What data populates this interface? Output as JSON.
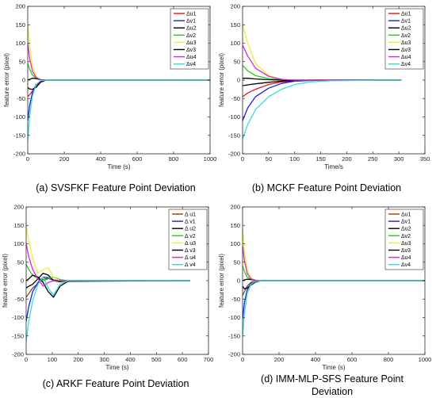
{
  "figure": {
    "captions": [
      "(a) SVSFKF Feature Point Deviation",
      "(b) MCKF Feature Point Deviation",
      "(c) ARKF Feature Point Deviation",
      [
        "(d) IMM-MLP-SFS Feature Point",
        "Deviation"
      ]
    ]
  },
  "chart_data": [
    {
      "type": "line",
      "title": "",
      "xlabel": "Time (s)",
      "ylabel": "feature error (pixel)",
      "xlim": [
        0,
        1000
      ],
      "ylim": [
        -200,
        200
      ],
      "xticks": [
        0,
        200,
        400,
        600,
        800,
        1000
      ],
      "yticks": [
        -200,
        -150,
        -100,
        -50,
        0,
        50,
        100,
        150,
        200
      ],
      "grid": false,
      "legend_position": "top-right",
      "series": [
        {
          "name": "Δu1",
          "color": "#e8141a",
          "x": [
            0,
            10,
            25,
            45,
            70,
            100,
            140,
            200,
            1000
          ],
          "y": [
            -45,
            -40,
            -30,
            -15,
            -4,
            0,
            0,
            0,
            0
          ]
        },
        {
          "name": "Δv1",
          "color": "#1d1de0",
          "x": [
            0,
            10,
            25,
            45,
            70,
            100,
            140,
            200,
            1000
          ],
          "y": [
            -110,
            -70,
            -35,
            -12,
            -3,
            0,
            0,
            0,
            0
          ]
        },
        {
          "name": "Δu2",
          "color": "#000000",
          "x": [
            0,
            10,
            25,
            45,
            70,
            100,
            140,
            200,
            1000
          ],
          "y": [
            -20,
            -24,
            -25,
            -20,
            -6,
            0,
            0,
            0,
            0
          ]
        },
        {
          "name": "Δv2",
          "color": "#22cc22",
          "x": [
            0,
            10,
            25,
            45,
            70,
            100,
            140,
            200,
            1000
          ],
          "y": [
            45,
            30,
            14,
            5,
            1,
            0,
            0,
            0,
            0
          ]
        },
        {
          "name": "Δu3",
          "color": "#eded33",
          "x": [
            0,
            10,
            25,
            45,
            70,
            100,
            140,
            200,
            1000
          ],
          "y": [
            150,
            95,
            40,
            10,
            2,
            0,
            0,
            0,
            0
          ]
        },
        {
          "name": "Δv3",
          "color": "#000000",
          "x": [
            0,
            10,
            25,
            45,
            70,
            100,
            140,
            200,
            1000
          ],
          "y": [
            0,
            2,
            5,
            4,
            1,
            0,
            0,
            0,
            0
          ]
        },
        {
          "name": "Δu4",
          "color": "#dd22dd",
          "x": [
            0,
            10,
            25,
            45,
            70,
            100,
            140,
            200,
            1000
          ],
          "y": [
            100,
            60,
            25,
            7,
            1,
            0,
            0,
            0,
            0
          ]
        },
        {
          "name": "Δv4",
          "color": "#33dddd",
          "x": [
            0,
            10,
            25,
            45,
            70,
            100,
            140,
            200,
            1000
          ],
          "y": [
            -165,
            -100,
            -45,
            -12,
            -2,
            0,
            0,
            0,
            0
          ]
        }
      ]
    },
    {
      "type": "line",
      "title": "",
      "xlabel": "Time/s",
      "ylabel": "feature error (pixel)",
      "xlim": [
        0,
        350
      ],
      "ylim": [
        -200,
        200
      ],
      "xticks": [
        0,
        50,
        100,
        150,
        200,
        250,
        300,
        350
      ],
      "yticks": [
        -200,
        -150,
        -100,
        -50,
        0,
        50,
        100,
        150,
        200
      ],
      "grid": false,
      "legend_position": "top-right",
      "series": [
        {
          "name": "Δu1",
          "color": "#e8141a",
          "x": [
            0,
            10,
            25,
            50,
            75,
            100,
            130,
            170,
            220,
            260,
            305
          ],
          "y": [
            -45,
            -35,
            -25,
            -12,
            -5,
            -2,
            0,
            0,
            0,
            0,
            0
          ]
        },
        {
          "name": "Δv1",
          "color": "#1d1de0",
          "x": [
            0,
            10,
            25,
            50,
            75,
            100,
            130,
            170,
            220,
            260,
            305
          ],
          "y": [
            -110,
            -75,
            -45,
            -22,
            -9,
            -3,
            -1,
            0,
            0,
            0,
            0
          ]
        },
        {
          "name": "Δu2",
          "color": "#000000",
          "x": [
            0,
            10,
            25,
            50,
            75,
            100,
            130,
            170,
            220,
            260,
            305
          ],
          "y": [
            -15,
            -13,
            -10,
            -6,
            -3,
            -1,
            0,
            0,
            0,
            0,
            0
          ]
        },
        {
          "name": "Δv2",
          "color": "#22cc22",
          "x": [
            0,
            10,
            25,
            50,
            75,
            100,
            130,
            170,
            220,
            260,
            305
          ],
          "y": [
            40,
            25,
            12,
            4,
            1,
            0,
            0,
            0,
            0,
            0,
            0
          ]
        },
        {
          "name": "Δu3",
          "color": "#eded33",
          "x": [
            0,
            10,
            25,
            50,
            75,
            100,
            130,
            170,
            220,
            260,
            305
          ],
          "y": [
            150,
            100,
            45,
            12,
            2,
            0,
            0,
            0,
            0,
            0,
            0
          ]
        },
        {
          "name": "Δv3",
          "color": "#000000",
          "x": [
            0,
            10,
            25,
            50,
            75,
            100,
            130,
            170,
            220,
            260,
            305
          ],
          "y": [
            5,
            5,
            3,
            1,
            0,
            0,
            0,
            0,
            0,
            0,
            0
          ]
        },
        {
          "name": "Δu4",
          "color": "#dd22dd",
          "x": [
            0,
            10,
            25,
            50,
            75,
            100,
            130,
            170,
            220,
            260,
            305
          ],
          "y": [
            95,
            65,
            32,
            10,
            2,
            0,
            0,
            0,
            0,
            0,
            0
          ]
        },
        {
          "name": "Δv4",
          "color": "#33dddd",
          "x": [
            0,
            10,
            25,
            50,
            75,
            100,
            130,
            170,
            220,
            260,
            305
          ],
          "y": [
            -160,
            -120,
            -80,
            -45,
            -25,
            -12,
            -5,
            -2,
            -1,
            0,
            0
          ]
        }
      ]
    },
    {
      "type": "line",
      "title": "",
      "xlabel": "Time (s)",
      "ylabel": "feature error (pixel)",
      "xlim": [
        0,
        700
      ],
      "ylim": [
        -200,
        200
      ],
      "xticks": [
        0,
        100,
        200,
        300,
        400,
        500,
        600,
        700
      ],
      "yticks": [
        -200,
        -150,
        -100,
        -50,
        0,
        50,
        100,
        150,
        200
      ],
      "grid": false,
      "legend_position": "top-right",
      "series": [
        {
          "name": "Δ u1",
          "color": "#8b4513",
          "x": [
            0,
            10,
            25,
            45,
            65,
            85,
            105,
            130,
            160,
            630
          ],
          "y": [
            -45,
            -35,
            -20,
            -8,
            4,
            6,
            2,
            0,
            0,
            0
          ]
        },
        {
          "name": "Δ v1",
          "color": "#1d1de0",
          "x": [
            0,
            10,
            25,
            45,
            65,
            85,
            105,
            130,
            160,
            630
          ],
          "y": [
            -110,
            -70,
            -30,
            -5,
            10,
            8,
            2,
            0,
            0,
            0
          ]
        },
        {
          "name": "Δ u2",
          "color": "#000000",
          "x": [
            0,
            10,
            25,
            45,
            65,
            85,
            105,
            130,
            160,
            630
          ],
          "y": [
            -20,
            -15,
            -10,
            5,
            20,
            15,
            0,
            -3,
            0,
            0
          ]
        },
        {
          "name": "Δ v2",
          "color": "#22cc22",
          "x": [
            0,
            10,
            25,
            45,
            65,
            85,
            105,
            130,
            160,
            630
          ],
          "y": [
            45,
            30,
            15,
            5,
            0,
            5,
            10,
            3,
            0,
            0
          ]
        },
        {
          "name": "Δ u3",
          "color": "#eded33",
          "x": [
            0,
            10,
            25,
            45,
            65,
            85,
            105,
            130,
            160,
            630
          ],
          "y": [
            150,
            110,
            60,
            20,
            30,
            35,
            10,
            0,
            0,
            0
          ]
        },
        {
          "name": "Δ v3",
          "color": "#000000",
          "x": [
            0,
            10,
            25,
            45,
            65,
            85,
            105,
            130,
            160,
            630
          ],
          "y": [
            0,
            5,
            15,
            10,
            -5,
            -30,
            -45,
            -15,
            -2,
            0
          ]
        },
        {
          "name": "Δ u4",
          "color": "#dd22dd",
          "x": [
            0,
            10,
            25,
            45,
            65,
            85,
            105,
            130,
            160,
            630
          ],
          "y": [
            100,
            65,
            30,
            5,
            -15,
            -5,
            0,
            0,
            0,
            0
          ]
        },
        {
          "name": "Δ v4",
          "color": "#33dddd",
          "x": [
            0,
            10,
            25,
            45,
            65,
            85,
            105,
            130,
            160,
            630
          ],
          "y": [
            -165,
            -110,
            -55,
            -10,
            10,
            -20,
            -40,
            -10,
            0,
            0
          ]
        }
      ]
    },
    {
      "type": "line",
      "title": "",
      "xlabel": "Time (s)",
      "ylabel": "feature error (pixel)",
      "xlim": [
        0,
        1000
      ],
      "ylim": [
        -200,
        200
      ],
      "xticks": [
        0,
        200,
        400,
        600,
        800,
        1000
      ],
      "yticks": [
        -200,
        -150,
        -100,
        -50,
        0,
        50,
        100,
        150,
        200
      ],
      "grid": false,
      "legend_position": "top-right",
      "series": [
        {
          "name": "Δu1",
          "color": "#8b4513",
          "x": [
            0,
            10,
            25,
            45,
            70,
            100,
            150,
            1000
          ],
          "y": [
            -40,
            -30,
            -15,
            -5,
            -1,
            0,
            0,
            0
          ]
        },
        {
          "name": "Δv1",
          "color": "#1d1de0",
          "x": [
            0,
            10,
            25,
            45,
            70,
            100,
            150,
            1000
          ],
          "y": [
            -105,
            -60,
            -25,
            -8,
            -2,
            0,
            0,
            0
          ]
        },
        {
          "name": "Δu2",
          "color": "#000000",
          "x": [
            0,
            10,
            25,
            45,
            70,
            100,
            150,
            1000
          ],
          "y": [
            -15,
            -22,
            -20,
            -12,
            -4,
            0,
            0,
            0
          ]
        },
        {
          "name": "Δv2",
          "color": "#22cc22",
          "x": [
            0,
            10,
            25,
            45,
            70,
            100,
            150,
            1000
          ],
          "y": [
            40,
            25,
            10,
            3,
            1,
            0,
            0,
            0
          ]
        },
        {
          "name": "Δu3",
          "color": "#eded33",
          "x": [
            0,
            10,
            25,
            45,
            70,
            100,
            150,
            1000
          ],
          "y": [
            145,
            80,
            30,
            8,
            2,
            0,
            0,
            0
          ]
        },
        {
          "name": "Δv3",
          "color": "#000000",
          "x": [
            0,
            10,
            25,
            45,
            70,
            100,
            150,
            1000
          ],
          "y": [
            0,
            2,
            4,
            3,
            1,
            0,
            0,
            0
          ]
        },
        {
          "name": "Δu4",
          "color": "#dd22dd",
          "x": [
            0,
            10,
            25,
            45,
            70,
            100,
            150,
            1000
          ],
          "y": [
            95,
            55,
            20,
            5,
            1,
            0,
            0,
            0
          ]
        },
        {
          "name": "Δv4",
          "color": "#33dddd",
          "x": [
            0,
            10,
            25,
            45,
            70,
            100,
            150,
            1000
          ],
          "y": [
            -150,
            -90,
            -35,
            -10,
            -2,
            0,
            0,
            0
          ]
        }
      ]
    }
  ]
}
